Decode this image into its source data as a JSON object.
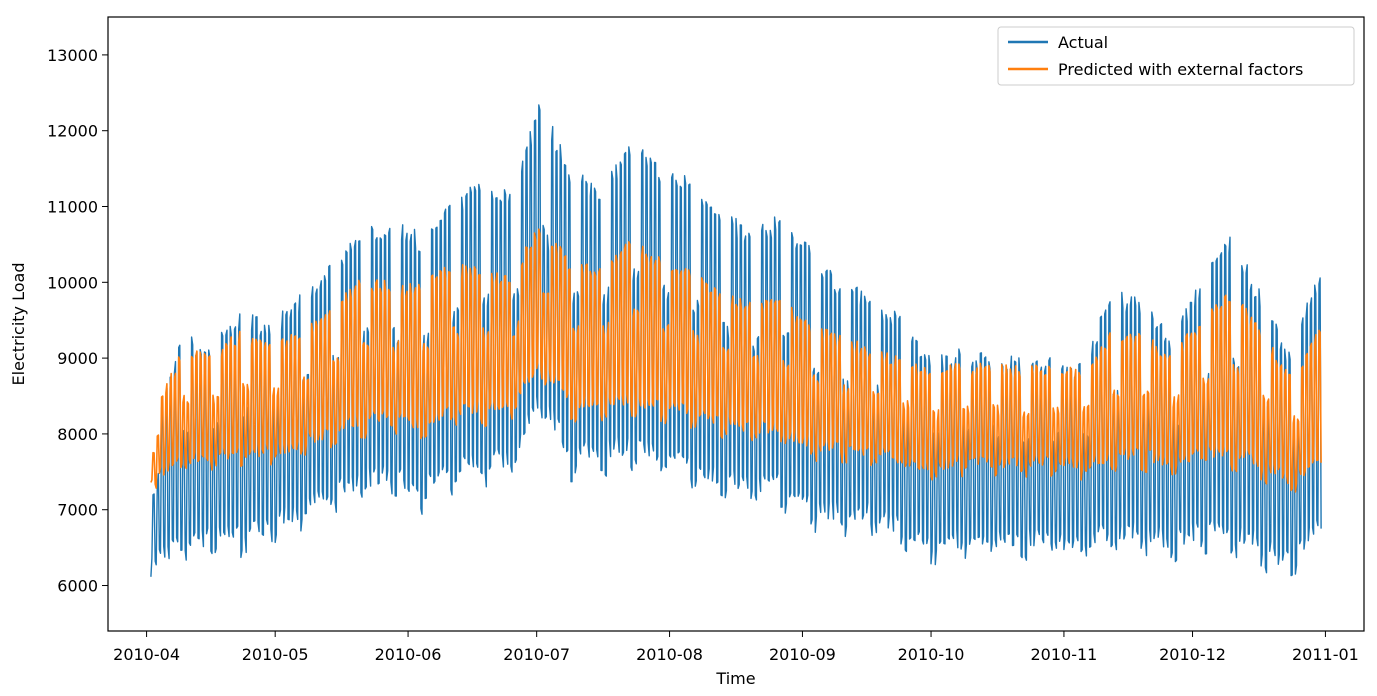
{
  "chart_data": {
    "type": "line",
    "title": "",
    "xlabel": "Time",
    "ylabel": "Electricity Load",
    "xlim": [
      "2010-03-23",
      "2011-01-10"
    ],
    "ylim": [
      5400,
      13500
    ],
    "grid": false,
    "legend_position": "top-right",
    "x_ticks": [
      "2010-04",
      "2010-05",
      "2010-06",
      "2010-07",
      "2010-08",
      "2010-09",
      "2010-10",
      "2010-11",
      "2010-12",
      "2011-01"
    ],
    "y_ticks": [
      "6000",
      "7000",
      "8000",
      "9000",
      "10000",
      "11000",
      "12000",
      "13000"
    ],
    "x_tick_values": [
      "2010-04-01",
      "2010-05-01",
      "2010-06-01",
      "2010-07-01",
      "2010-08-01",
      "2010-09-01",
      "2010-10-01",
      "2010-11-01",
      "2010-12-01",
      "2011-01-01"
    ],
    "y_tick_values": [
      6000,
      7000,
      8000,
      9000,
      10000,
      11000,
      12000,
      13000
    ],
    "envelope_dates": [
      "2010-04-02",
      "2010-04-09",
      "2010-04-16",
      "2010-04-23",
      "2010-04-30",
      "2010-05-07",
      "2010-05-14",
      "2010-05-21",
      "2010-05-28",
      "2010-06-04",
      "2010-06-11",
      "2010-06-18",
      "2010-06-25",
      "2010-07-02",
      "2010-07-09",
      "2010-07-16",
      "2010-07-23",
      "2010-07-30",
      "2010-08-06",
      "2010-08-13",
      "2010-08-20",
      "2010-08-27",
      "2010-09-03",
      "2010-09-10",
      "2010-09-17",
      "2010-09-24",
      "2010-10-01",
      "2010-10-08",
      "2010-10-15",
      "2010-10-22",
      "2010-10-29",
      "2010-11-05",
      "2010-11-12",
      "2010-11-19",
      "2010-11-26",
      "2010-12-03",
      "2010-12-10",
      "2010-12-17",
      "2010-12-24",
      "2010-12-31"
    ],
    "series": [
      {
        "name": "Actual",
        "color": "#1f77b4",
        "daily_peak": [
          8100,
          9750,
          9600,
          10100,
          9900,
          10300,
          10700,
          11300,
          11400,
          11200,
          11600,
          12050,
          11800,
          13100,
          12100,
          11900,
          12550,
          12200,
          12000,
          11600,
          11200,
          11500,
          11000,
          10500,
          10300,
          10000,
          9400,
          9500,
          9450,
          9350,
          9400,
          9300,
          10400,
          10300,
          9700,
          10600,
          11300,
          10400,
          9500,
          10850
        ],
        "nightly_trough": [
          6050,
          6000,
          6150,
          6100,
          6300,
          6450,
          6650,
          6750,
          6800,
          6600,
          6850,
          6900,
          7000,
          7750,
          7000,
          7100,
          7050,
          7000,
          6900,
          6700,
          6700,
          6650,
          6400,
          6350,
          6400,
          6250,
          6000,
          6150,
          6200,
          6150,
          6150,
          6100,
          6100,
          6150,
          6050,
          6100,
          6000,
          5900,
          5750,
          6300
        ]
      },
      {
        "name": "Predicted with external factors",
        "color": "#ff7f0e",
        "daily_peak": [
          8250,
          9400,
          9400,
          9700,
          9500,
          9700,
          10000,
          10500,
          10400,
          10400,
          10700,
          10600,
          10500,
          11250,
          10700,
          10600,
          11050,
          10800,
          10600,
          10300,
          10100,
          10200,
          9800,
          9600,
          9450,
          9300,
          9150,
          9200,
          9200,
          9150,
          9200,
          9100,
          9700,
          9700,
          9400,
          9900,
          10400,
          9800,
          9100,
          9800
        ],
        "nightly_trough": [
          7200,
          7300,
          7350,
          7350,
          7400,
          7500,
          7600,
          7700,
          7750,
          7650,
          7800,
          7850,
          7950,
          8450,
          7900,
          7950,
          7900,
          7850,
          7800,
          7700,
          7650,
          7600,
          7450,
          7450,
          7400,
          7350,
          7200,
          7300,
          7300,
          7300,
          7300,
          7250,
          7300,
          7300,
          7250,
          7300,
          7200,
          7150,
          7000,
          7300
        ]
      }
    ]
  }
}
